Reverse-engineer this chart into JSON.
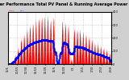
{
  "title": "Solar PV/Inverter Performance Total PV Panel & Running Average Power Output",
  "bg_color": "#d0d0d0",
  "plot_bg_color": "#ffffff",
  "bar_color": "#ff0000",
  "avg_color": "#0000ff",
  "grid_color": "#999999",
  "ylim": [
    0,
    400
  ],
  "n_days": 35,
  "pts_per_day": 144,
  "title_fontsize": 3.5,
  "tick_fontsize": 2.5,
  "day_peaks": [
    5,
    10,
    60,
    120,
    180,
    220,
    260,
    290,
    310,
    330,
    340,
    355,
    360,
    360,
    340,
    350,
    20,
    15,
    320,
    310,
    290,
    30,
    270,
    260,
    250,
    240,
    220,
    200,
    180,
    160,
    150,
    130,
    120,
    100,
    80
  ],
  "date_labels": [
    "10/1",
    "10/5",
    "10/10",
    "10/15",
    "10/20",
    "10/25",
    "10/30",
    "11/1",
    "11/5",
    "11/10",
    "11/15",
    "11/20",
    "11/25",
    "11/30",
    "12/1",
    "12/5",
    "12/10",
    "12/15",
    "12/20",
    "12/25",
    "12/30",
    "1/1",
    "1/5",
    "1/10",
    "1/15",
    "1/20",
    "1/25",
    "1/30",
    "2/1",
    "2/5",
    "2/10",
    "2/15",
    "2/20",
    "2/25",
    "2/28"
  ]
}
